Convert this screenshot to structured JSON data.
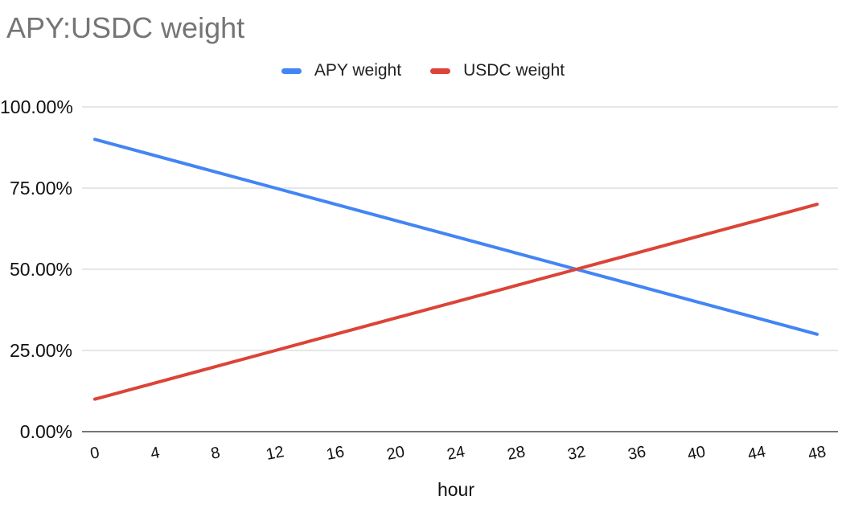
{
  "chart_data": {
    "type": "line",
    "title": "APY:USDC weight",
    "xlabel": "hour",
    "ylabel": "",
    "categories": [
      "0",
      "4",
      "8",
      "12",
      "16",
      "20",
      "24",
      "28",
      "32",
      "36",
      "40",
      "44",
      "48"
    ],
    "series": [
      {
        "name": "APY weight",
        "color": "#4285F4",
        "values": [
          90,
          85,
          80,
          75,
          70,
          65,
          60,
          55,
          50,
          45,
          40,
          35,
          30
        ]
      },
      {
        "name": "USDC weight",
        "color": "#DB4437",
        "values": [
          10,
          15,
          20,
          25,
          30,
          35,
          40,
          45,
          50,
          55,
          60,
          65,
          70
        ]
      }
    ],
    "ytick_labels": [
      "100.00%",
      "75.00%",
      "50.00%",
      "25.00%",
      "0.00%"
    ],
    "yticks_percent": [
      100,
      75,
      50,
      25,
      0
    ],
    "ylim": [
      0,
      100
    ],
    "xlim": [
      0,
      48
    ],
    "legend_position": "top",
    "grid": "horizontal",
    "colors": {
      "grid": "#e6e6e6",
      "axis": "#757575",
      "title_text": "#757575",
      "label_text": "#111111"
    }
  }
}
